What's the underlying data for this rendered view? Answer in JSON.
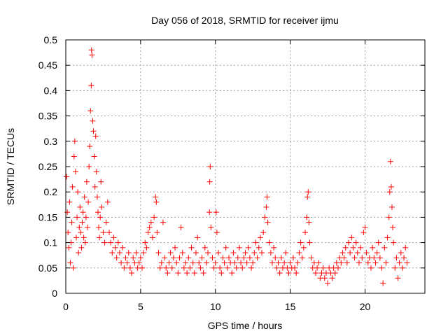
{
  "chart_data": {
    "type": "scatter",
    "title": "Day 056 of 2018, SRMTID for receiver ijmu",
    "xlabel": "GPS time / hours",
    "ylabel": "SRMTID / TECUs",
    "xlim": [
      0,
      24
    ],
    "ylim": [
      0,
      0.5
    ],
    "x_ticks": [
      0,
      5,
      10,
      15,
      20
    ],
    "x_tick_labels": [
      "0",
      "5",
      "10",
      "15",
      "20"
    ],
    "y_ticks": [
      0,
      0.05,
      0.1,
      0.15,
      0.2,
      0.25,
      0.3,
      0.35,
      0.4,
      0.45,
      0.5
    ],
    "y_tick_labels": [
      "0",
      "0.05",
      "0.1",
      "0.15",
      "0.2",
      "0.25",
      "0.3",
      "0.35",
      "0.4",
      "0.45",
      "0.5"
    ],
    "grid": true,
    "marker": "+",
    "series": [
      {
        "name": "SRMTID",
        "color": "#ff0000",
        "points": [
          [
            0.05,
            0.23
          ],
          [
            0.1,
            0.16
          ],
          [
            0.15,
            0.12
          ],
          [
            0.2,
            0.09
          ],
          [
            0.25,
            0.18
          ],
          [
            0.3,
            0.06
          ],
          [
            0.35,
            0.1
          ],
          [
            0.4,
            0.14
          ],
          [
            0.45,
            0.21
          ],
          [
            0.5,
            0.05
          ],
          [
            0.55,
            0.27
          ],
          [
            0.6,
            0.3
          ],
          [
            0.65,
            0.24
          ],
          [
            0.7,
            0.11
          ],
          [
            0.75,
            0.15
          ],
          [
            0.8,
            0.2
          ],
          [
            0.85,
            0.08
          ],
          [
            0.9,
            0.13
          ],
          [
            0.95,
            0.17
          ],
          [
            1.0,
            0.12
          ],
          [
            1.05,
            0.09
          ],
          [
            1.1,
            0.14
          ],
          [
            1.15,
            0.16
          ],
          [
            1.2,
            0.11
          ],
          [
            1.25,
            0.19
          ],
          [
            1.3,
            0.1
          ],
          [
            1.35,
            0.15
          ],
          [
            1.4,
            0.22
          ],
          [
            1.45,
            0.13
          ],
          [
            1.5,
            0.18
          ],
          [
            1.55,
            0.25
          ],
          [
            1.6,
            0.29
          ],
          [
            1.65,
            0.36
          ],
          [
            1.7,
            0.41
          ],
          [
            1.72,
            0.48
          ],
          [
            1.75,
            0.47
          ],
          [
            1.8,
            0.34
          ],
          [
            1.85,
            0.32
          ],
          [
            1.9,
            0.27
          ],
          [
            1.95,
            0.21
          ],
          [
            2.0,
            0.31
          ],
          [
            2.05,
            0.24
          ],
          [
            2.1,
            0.19
          ],
          [
            2.15,
            0.16
          ],
          [
            2.2,
            0.13
          ],
          [
            2.25,
            0.11
          ],
          [
            2.3,
            0.15
          ],
          [
            2.35,
            0.22
          ],
          [
            2.4,
            0.17
          ],
          [
            2.5,
            0.12
          ],
          [
            2.6,
            0.1
          ],
          [
            2.7,
            0.14
          ],
          [
            2.8,
            0.18
          ],
          [
            2.9,
            0.12
          ],
          [
            3.0,
            0.1
          ],
          [
            3.1,
            0.08
          ],
          [
            3.2,
            0.11
          ],
          [
            3.3,
            0.09
          ],
          [
            3.4,
            0.07
          ],
          [
            3.5,
            0.1
          ],
          [
            3.6,
            0.08
          ],
          [
            3.7,
            0.06
          ],
          [
            3.8,
            0.09
          ],
          [
            3.9,
            0.05
          ],
          [
            4.0,
            0.07
          ],
          [
            4.1,
            0.06
          ],
          [
            4.2,
            0.08
          ],
          [
            4.3,
            0.05
          ],
          [
            4.4,
            0.04
          ],
          [
            4.5,
            0.07
          ],
          [
            4.6,
            0.06
          ],
          [
            4.7,
            0.08
          ],
          [
            4.8,
            0.05
          ],
          [
            4.9,
            0.06
          ],
          [
            5.0,
            0.07
          ],
          [
            5.1,
            0.05
          ],
          [
            5.2,
            0.08
          ],
          [
            5.3,
            0.1
          ],
          [
            5.4,
            0.09
          ],
          [
            5.5,
            0.12
          ],
          [
            5.6,
            0.13
          ],
          [
            5.7,
            0.14
          ],
          [
            5.8,
            0.11
          ],
          [
            5.9,
            0.15
          ],
          [
            6.0,
            0.19
          ],
          [
            6.05,
            0.18
          ],
          [
            6.1,
            0.12
          ],
          [
            6.2,
            0.08
          ],
          [
            6.3,
            0.05
          ],
          [
            6.4,
            0.06
          ],
          [
            6.5,
            0.14
          ],
          [
            6.6,
            0.07
          ],
          [
            6.7,
            0.05
          ],
          [
            6.8,
            0.04
          ],
          [
            6.9,
            0.06
          ],
          [
            7.0,
            0.08
          ],
          [
            7.1,
            0.05
          ],
          [
            7.2,
            0.07
          ],
          [
            7.3,
            0.09
          ],
          [
            7.4,
            0.06
          ],
          [
            7.5,
            0.04
          ],
          [
            7.6,
            0.07
          ],
          [
            7.7,
            0.13
          ],
          [
            7.8,
            0.08
          ],
          [
            7.9,
            0.05
          ],
          [
            8.0,
            0.06
          ],
          [
            8.1,
            0.04
          ],
          [
            8.2,
            0.07
          ],
          [
            8.3,
            0.05
          ],
          [
            8.4,
            0.09
          ],
          [
            8.5,
            0.06
          ],
          [
            8.6,
            0.04
          ],
          [
            8.7,
            0.08
          ],
          [
            8.8,
            0.11
          ],
          [
            8.9,
            0.06
          ],
          [
            9.0,
            0.05
          ],
          [
            9.1,
            0.07
          ],
          [
            9.2,
            0.04
          ],
          [
            9.3,
            0.09
          ],
          [
            9.4,
            0.06
          ],
          [
            9.5,
            0.08
          ],
          [
            9.6,
            0.16
          ],
          [
            9.62,
            0.22
          ],
          [
            9.65,
            0.25
          ],
          [
            9.7,
            0.13
          ],
          [
            9.8,
            0.07
          ],
          [
            9.9,
            0.05
          ],
          [
            10.0,
            0.06
          ],
          [
            10.05,
            0.16
          ],
          [
            10.1,
            0.12
          ],
          [
            10.2,
            0.08
          ],
          [
            10.3,
            0.05
          ],
          [
            10.4,
            0.04
          ],
          [
            10.5,
            0.07
          ],
          [
            10.6,
            0.06
          ],
          [
            10.7,
            0.09
          ],
          [
            10.8,
            0.05
          ],
          [
            10.9,
            0.07
          ],
          [
            11.0,
            0.06
          ],
          [
            11.1,
            0.04
          ],
          [
            11.2,
            0.08
          ],
          [
            11.3,
            0.06
          ],
          [
            11.4,
            0.05
          ],
          [
            11.5,
            0.07
          ],
          [
            11.6,
            0.09
          ],
          [
            11.7,
            0.06
          ],
          [
            11.8,
            0.05
          ],
          [
            11.9,
            0.07
          ],
          [
            12.0,
            0.08
          ],
          [
            12.1,
            0.06
          ],
          [
            12.2,
            0.09
          ],
          [
            12.3,
            0.07
          ],
          [
            12.4,
            0.05
          ],
          [
            12.5,
            0.06
          ],
          [
            12.6,
            0.08
          ],
          [
            12.7,
            0.1
          ],
          [
            12.8,
            0.07
          ],
          [
            12.9,
            0.09
          ],
          [
            13.0,
            0.11
          ],
          [
            13.1,
            0.08
          ],
          [
            13.2,
            0.12
          ],
          [
            13.3,
            0.15
          ],
          [
            13.4,
            0.17
          ],
          [
            13.45,
            0.19
          ],
          [
            13.5,
            0.14
          ],
          [
            13.6,
            0.1
          ],
          [
            13.7,
            0.08
          ],
          [
            13.8,
            0.06
          ],
          [
            13.9,
            0.09
          ],
          [
            14.0,
            0.07
          ],
          [
            14.1,
            0.05
          ],
          [
            14.2,
            0.06
          ],
          [
            14.3,
            0.04
          ],
          [
            14.4,
            0.07
          ],
          [
            14.5,
            0.05
          ],
          [
            14.6,
            0.06
          ],
          [
            14.7,
            0.08
          ],
          [
            14.8,
            0.05
          ],
          [
            14.9,
            0.04
          ],
          [
            15.0,
            0.06
          ],
          [
            15.1,
            0.05
          ],
          [
            15.2,
            0.07
          ],
          [
            15.3,
            0.05
          ],
          [
            15.4,
            0.04
          ],
          [
            15.5,
            0.06
          ],
          [
            15.6,
            0.08
          ],
          [
            15.7,
            0.1
          ],
          [
            15.8,
            0.07
          ],
          [
            15.9,
            0.09
          ],
          [
            16.0,
            0.12
          ],
          [
            16.1,
            0.15
          ],
          [
            16.15,
            0.19
          ],
          [
            16.2,
            0.2
          ],
          [
            16.25,
            0.14
          ],
          [
            16.3,
            0.1
          ],
          [
            16.4,
            0.07
          ],
          [
            16.5,
            0.05
          ],
          [
            16.6,
            0.06
          ],
          [
            16.7,
            0.04
          ],
          [
            16.8,
            0.05
          ],
          [
            16.9,
            0.06
          ],
          [
            17.0,
            0.03
          ],
          [
            17.1,
            0.04
          ],
          [
            17.2,
            0.05
          ],
          [
            17.3,
            0.03
          ],
          [
            17.4,
            0.04
          ],
          [
            17.5,
            0.02
          ],
          [
            17.6,
            0.05
          ],
          [
            17.7,
            0.04
          ],
          [
            17.8,
            0.03
          ],
          [
            17.9,
            0.05
          ],
          [
            18.0,
            0.04
          ],
          [
            18.1,
            0.06
          ],
          [
            18.2,
            0.05
          ],
          [
            18.3,
            0.07
          ],
          [
            18.4,
            0.06
          ],
          [
            18.5,
            0.08
          ],
          [
            18.6,
            0.07
          ],
          [
            18.7,
            0.09
          ],
          [
            18.8,
            0.06
          ],
          [
            18.9,
            0.1
          ],
          [
            19.0,
            0.08
          ],
          [
            19.1,
            0.11
          ],
          [
            19.2,
            0.09
          ],
          [
            19.3,
            0.07
          ],
          [
            19.4,
            0.1
          ],
          [
            19.5,
            0.08
          ],
          [
            19.6,
            0.06
          ],
          [
            19.7,
            0.09
          ],
          [
            19.8,
            0.07
          ],
          [
            19.9,
            0.12
          ],
          [
            20.0,
            0.13
          ],
          [
            20.1,
            0.08
          ],
          [
            20.2,
            0.06
          ],
          [
            20.3,
            0.07
          ],
          [
            20.4,
            0.05
          ],
          [
            20.5,
            0.09
          ],
          [
            20.6,
            0.07
          ],
          [
            20.7,
            0.06
          ],
          [
            20.8,
            0.08
          ],
          [
            20.9,
            0.1
          ],
          [
            21.0,
            0.07
          ],
          [
            21.1,
            0.05
          ],
          [
            21.2,
            0.02
          ],
          [
            21.3,
            0.09
          ],
          [
            21.4,
            0.06
          ],
          [
            21.5,
            0.11
          ],
          [
            21.6,
            0.15
          ],
          [
            21.65,
            0.2
          ],
          [
            21.7,
            0.26
          ],
          [
            21.75,
            0.21
          ],
          [
            21.8,
            0.17
          ],
          [
            21.85,
            0.13
          ],
          [
            21.9,
            0.1
          ],
          [
            22.0,
            0.05
          ],
          [
            22.1,
            0.07
          ],
          [
            22.2,
            0.03
          ],
          [
            22.3,
            0.06
          ],
          [
            22.4,
            0.08
          ],
          [
            22.5,
            0.05
          ],
          [
            22.6,
            0.07
          ],
          [
            22.7,
            0.09
          ],
          [
            22.8,
            0.06
          ]
        ]
      }
    ]
  }
}
